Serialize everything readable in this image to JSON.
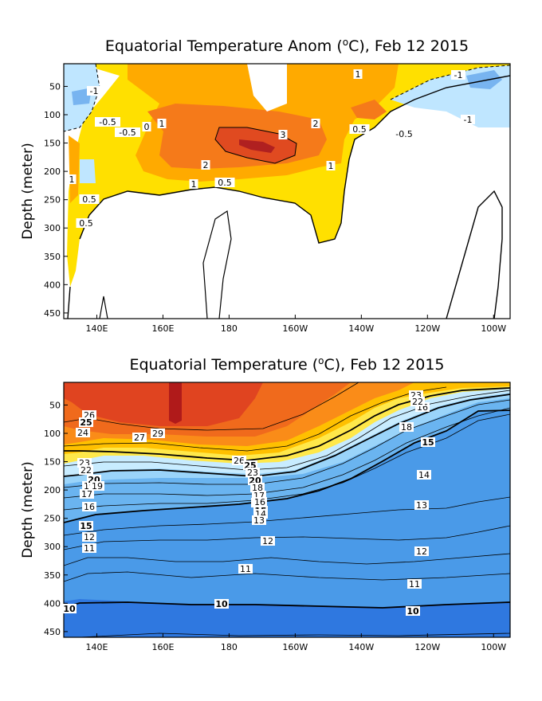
{
  "chart_data": [
    {
      "type": "heatmap",
      "title": "Equatorial Temperature Anom (°C), Feb 12 2015",
      "title_main": "Equatorial Temperature Anom (",
      "title_unit": "C), Feb 12 2015",
      "degree_symbol": "o",
      "xlabel": "",
      "ylabel": "Depth (meter)",
      "x_ticks": [
        "140E",
        "160E",
        "180",
        "160W",
        "140W",
        "120W",
        "100W"
      ],
      "x_tick_values": [
        140,
        160,
        180,
        200,
        220,
        240,
        260
      ],
      "xlim": [
        130,
        265
      ],
      "y_ticks": [
        "50",
        "100",
        "150",
        "200",
        "250",
        "300",
        "350",
        "400",
        "450"
      ],
      "y_tick_values": [
        50,
        100,
        150,
        200,
        250,
        300,
        350,
        400,
        450
      ],
      "ylim": [
        460,
        10
      ],
      "contour_labels": [
        "-1",
        "-1",
        "-1",
        "-0.5",
        "-0.5",
        "-0.5",
        "0",
        "0.5",
        "0.5",
        "0.5",
        "0.5",
        "1",
        "1",
        "1",
        "1",
        "1",
        "2",
        "2",
        "3"
      ],
      "colors": {
        "neg_strong": "#78b4f0",
        "neg_weak": "#bfe6ff",
        "pos_0_5": "#ffe000",
        "pos_1": "#ffaa00",
        "pos_2": "#f57a1a",
        "pos_3": "#e04a20",
        "pos_4": "#b02020"
      }
    },
    {
      "type": "heatmap",
      "title": "Equatorial Temperature (°C), Feb 12 2015",
      "title_main": "Equatorial Temperature (",
      "title_unit": "C), Feb 12 2015",
      "degree_symbol": "o",
      "xlabel": "",
      "ylabel": "Depth (meter)",
      "x_ticks": [
        "140E",
        "160E",
        "180",
        "160W",
        "140W",
        "120W",
        "100W"
      ],
      "x_tick_values": [
        140,
        160,
        180,
        200,
        220,
        240,
        260
      ],
      "xlim": [
        130,
        265
      ],
      "y_ticks": [
        "50",
        "100",
        "150",
        "200",
        "250",
        "300",
        "350",
        "400",
        "450"
      ],
      "y_tick_values": [
        50,
        100,
        150,
        200,
        250,
        300,
        350,
        400,
        450
      ],
      "ylim": [
        460,
        10
      ],
      "contour_labels": [
        "26",
        "25",
        "24",
        "27",
        "29",
        "23",
        "22",
        "18",
        "16",
        "15",
        "26",
        "25",
        "23",
        "20",
        "19",
        "17",
        "16",
        "15",
        "14",
        "13",
        "12",
        "11",
        "10",
        "10",
        "10",
        "14",
        "13",
        "12",
        "11",
        "23",
        "22",
        "20",
        "19",
        "18",
        "17",
        "16",
        "15",
        "14",
        "13",
        "12",
        "11"
      ],
      "colors": {
        "t29": "#b01a1a",
        "t28": "#e04420",
        "t27": "#f06a1c",
        "t26": "#fa8c18",
        "t24": "#ffc000",
        "t22": "#ffe84a",
        "t20": "#c8ecff",
        "t18": "#9ad4fa",
        "t15": "#6ab4f0",
        "t12": "#4a9ae8",
        "t10": "#2f78e0"
      }
    }
  ]
}
